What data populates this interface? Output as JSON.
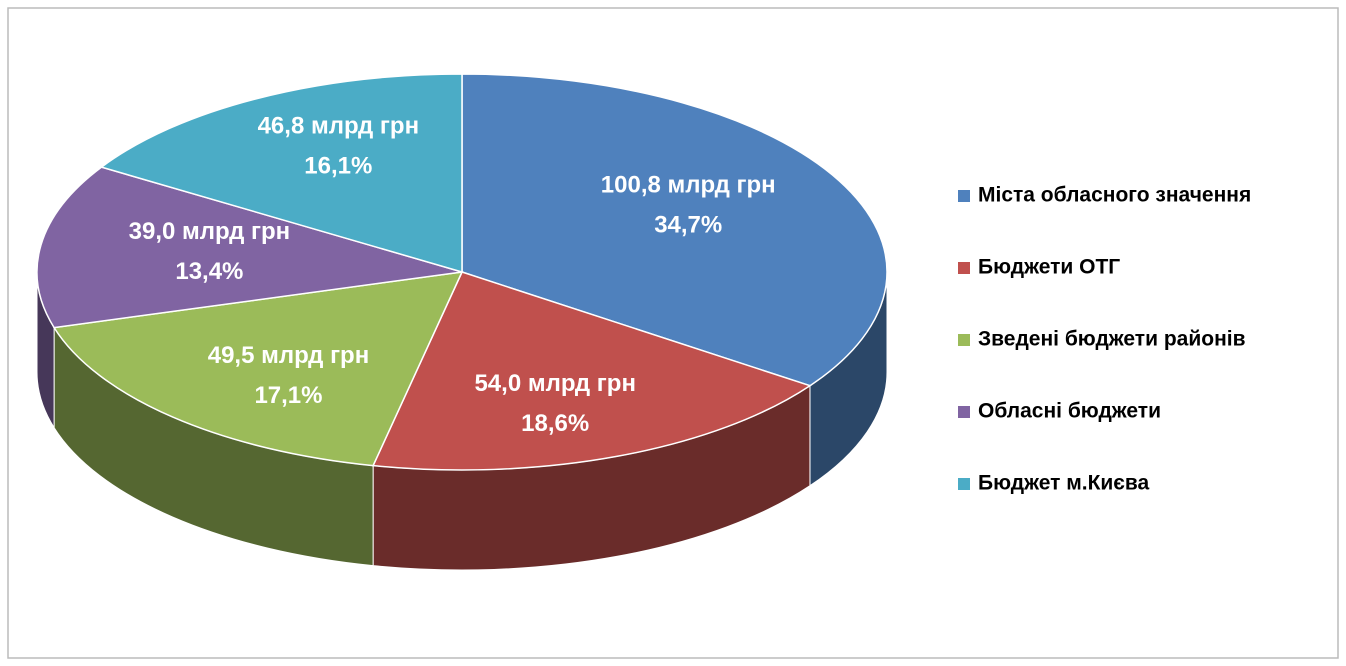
{
  "chart_data": {
    "type": "pie",
    "categories": [
      "Міста обласного значення",
      "Бюджети ОТГ",
      "Зведені бюджети районів",
      "Обласні бюджети",
      "Бюджет м.Києва"
    ],
    "values": [
      100.8,
      54.0,
      49.5,
      39.0,
      46.8
    ],
    "value_labels": [
      "100,8 млрд грн",
      "54,0 млрд грн",
      "49,5 млрд грн",
      "39,0 млрд грн",
      "46,8 млрд грн"
    ],
    "percents": [
      34.7,
      18.6,
      17.1,
      13.4,
      16.1
    ],
    "percent_labels": [
      "34,7%",
      "18,6%",
      "17,1%",
      "13,4%",
      "16,1%"
    ],
    "colors": [
      "#4f81bd",
      "#c0504d",
      "#9bbb59",
      "#8064a2",
      "#4bacc6"
    ],
    "legend": "right"
  }
}
